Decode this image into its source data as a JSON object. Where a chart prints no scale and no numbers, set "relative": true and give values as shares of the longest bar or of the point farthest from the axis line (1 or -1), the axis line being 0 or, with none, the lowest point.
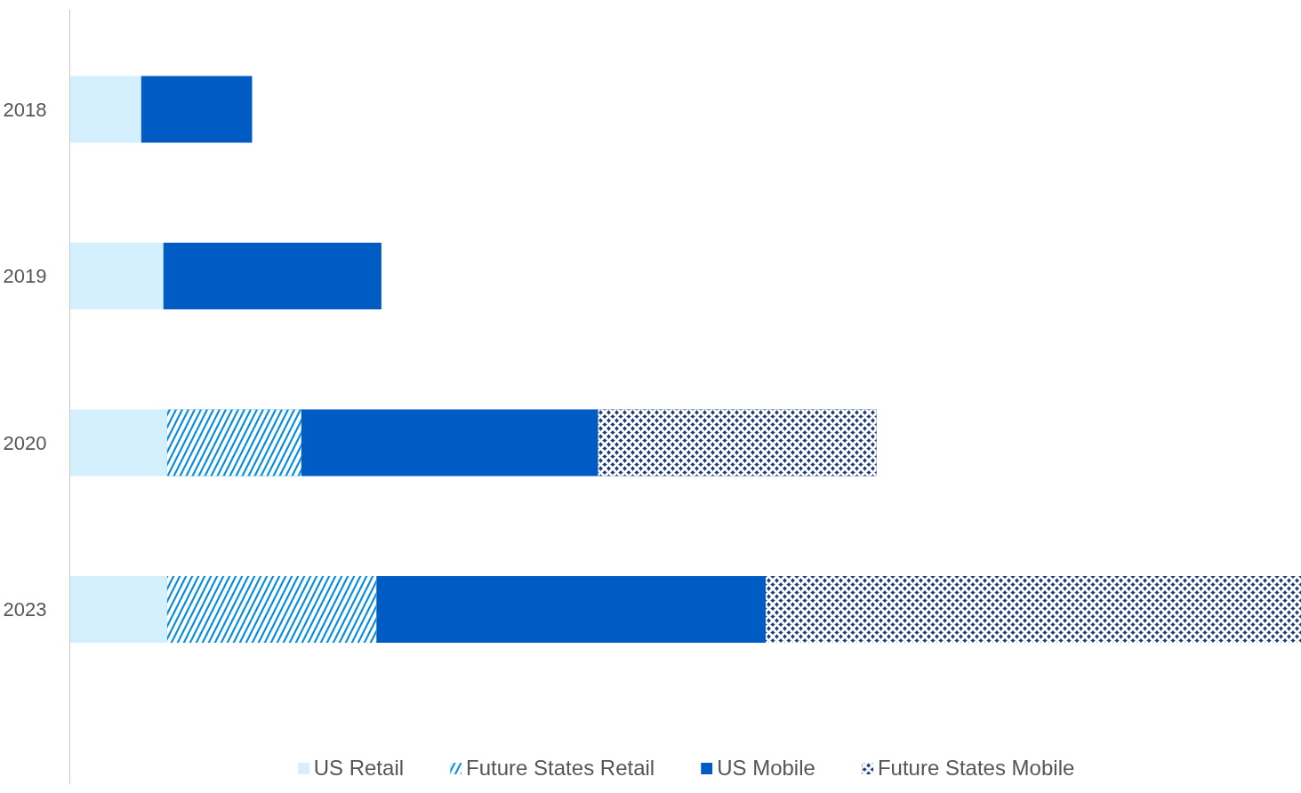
{
  "chart_data": {
    "type": "bar",
    "orientation": "horizontal",
    "stacked": true,
    "relative": true,
    "grid": false,
    "legend": "bottom",
    "categories": [
      "2018",
      "2019",
      "2020",
      "2023"
    ],
    "series": [
      {
        "name": "US Retail",
        "color": "#d4effd",
        "values": [
          0.058,
          0.076,
          0.079,
          0.079
        ]
      },
      {
        "name": "Future States Retail",
        "color": "#0a8fe0",
        "values": [
          null,
          null,
          0.109,
          0.17
        ]
      },
      {
        "name": "US Mobile",
        "color": "#005cc5",
        "values": [
          0.09,
          0.177,
          0.241,
          0.316
        ]
      },
      {
        "name": "Future States Mobile",
        "color": "#1a3a7a",
        "values": [
          null,
          null,
          0.226,
          0.435
        ]
      }
    ]
  }
}
